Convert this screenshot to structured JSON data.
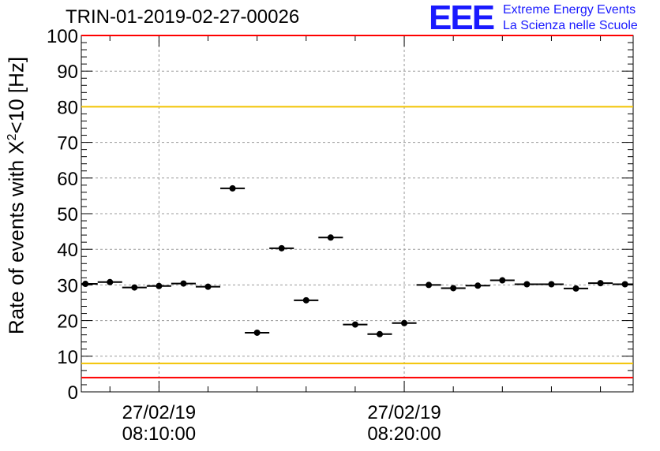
{
  "title": "TRIN-01-2019-02-27-00026",
  "logo": {
    "mark": "EEE",
    "line1": "Extreme Energy Events",
    "line2": "La Scienza nelle Scuole"
  },
  "colors": {
    "limit_red": "#ff0000",
    "limit_yellow": "#f2c300",
    "points": "#000000",
    "logo_blue": "#1a1aff"
  },
  "chart_data": {
    "type": "scatter",
    "title": "TRIN-01-2019-02-27-00026",
    "ylabel": {
      "pre": "Rate of events with X",
      "sup": "2",
      "post": "<10 [Hz]"
    },
    "ylim": [
      0,
      100
    ],
    "yticks": [
      0,
      10,
      20,
      30,
      40,
      50,
      60,
      70,
      80,
      90,
      100
    ],
    "xlim": [
      "2019-02-27 08:06:50",
      "2019-02-27 08:29:20"
    ],
    "xticks": [
      {
        "time": "2019-02-27 08:10:00",
        "date_label": "27/02/19",
        "time_label": "08:10:00"
      },
      {
        "time": "2019-02-27 08:20:00",
        "date_label": "27/02/19",
        "time_label": "08:20:00"
      }
    ],
    "grid": true,
    "bin_width_seconds": 60,
    "limit_lines": [
      {
        "y": 100,
        "color": "red"
      },
      {
        "y": 80,
        "color": "yellow"
      },
      {
        "y": 8,
        "color": "yellow"
      },
      {
        "y": 4,
        "color": "red"
      }
    ],
    "points": [
      {
        "x": "2019-02-27 08:07:00",
        "y": 30.3
      },
      {
        "x": "2019-02-27 08:08:00",
        "y": 30.8
      },
      {
        "x": "2019-02-27 08:09:00",
        "y": 29.3
      },
      {
        "x": "2019-02-27 08:10:00",
        "y": 29.7
      },
      {
        "x": "2019-02-27 08:11:00",
        "y": 30.4
      },
      {
        "x": "2019-02-27 08:12:00",
        "y": 29.5
      },
      {
        "x": "2019-02-27 08:13:00",
        "y": 57.1
      },
      {
        "x": "2019-02-27 08:14:00",
        "y": 16.6
      },
      {
        "x": "2019-02-27 08:15:00",
        "y": 40.3
      },
      {
        "x": "2019-02-27 08:16:00",
        "y": 25.7
      },
      {
        "x": "2019-02-27 08:17:00",
        "y": 43.3
      },
      {
        "x": "2019-02-27 08:18:00",
        "y": 18.9
      },
      {
        "x": "2019-02-27 08:19:00",
        "y": 16.2
      },
      {
        "x": "2019-02-27 08:20:00",
        "y": 19.3
      },
      {
        "x": "2019-02-27 08:21:00",
        "y": 30.0
      },
      {
        "x": "2019-02-27 08:22:00",
        "y": 29.1
      },
      {
        "x": "2019-02-27 08:23:00",
        "y": 29.8
      },
      {
        "x": "2019-02-27 08:24:00",
        "y": 31.3
      },
      {
        "x": "2019-02-27 08:25:00",
        "y": 30.2
      },
      {
        "x": "2019-02-27 08:26:00",
        "y": 30.2
      },
      {
        "x": "2019-02-27 08:27:00",
        "y": 29.0
      },
      {
        "x": "2019-02-27 08:28:00",
        "y": 30.5
      },
      {
        "x": "2019-02-27 08:29:00",
        "y": 30.2
      }
    ]
  }
}
